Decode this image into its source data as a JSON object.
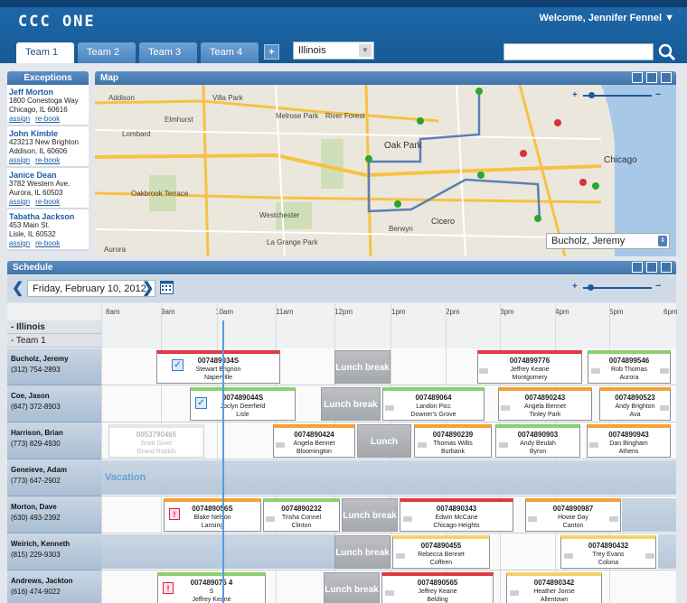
{
  "app": {
    "logo": "CCC ONE",
    "welcome": "Welcome, Jennifer Fennel"
  },
  "tabs": [
    "Team 1",
    "Team 2",
    "Team 3",
    "Team 4"
  ],
  "add_tab": "+",
  "state_select": "Illinois",
  "exceptions": {
    "title": "Exceptions",
    "assign": "assign",
    "rebook": "re-book",
    "items": [
      {
        "name": "Jeff Morton",
        "addr1": "1800 Conestoga Way",
        "addr2": "Chicago, IL 60616"
      },
      {
        "name": "John Kimble",
        "addr1": "423213 New Brighton",
        "addr2": "Addison, IL 60606"
      },
      {
        "name": "Janice Dean",
        "addr1": "3782 Western Ave.",
        "addr2": "Aurora, IL 60503"
      },
      {
        "name": "Tabatha Jackson",
        "addr1": "453 Main St.",
        "addr2": "Lisle, IL 60532"
      }
    ]
  },
  "map": {
    "title": "Map",
    "driver_select": "Bucholz, Jeremy",
    "places": [
      "Elmhurst",
      "Oak Park",
      "Chicago",
      "Aurora",
      "Cicero",
      "Berwyn",
      "Westchester",
      "La Grange Park",
      "Melrose Park",
      "River Forest",
      "Lombard",
      "Oakbrook Terrace",
      "Villa Park",
      "Addison"
    ]
  },
  "schedule": {
    "title": "Schedule",
    "date": "Friday, February 10, 2012",
    "hours": [
      "8am",
      "9am",
      "10am",
      "11am",
      "12pm",
      "1pm",
      "2pm",
      "3pm",
      "4pm",
      "5pm",
      "6pm"
    ],
    "group_state": "- Illinois",
    "group_team": "- Team 1",
    "lunch": "Lunch break",
    "vacation": "Vacation",
    "rows": [
      {
        "name": "Bucholz, Jeremy",
        "phone": "(312) 754-2893"
      },
      {
        "name": "Coe, Jason",
        "phone": "(847) 372-8903"
      },
      {
        "name": "Harrison, Brian",
        "phone": "(773) 829-4930"
      },
      {
        "name": "Geneieve, Adam",
        "phone": "(773) 647-2902"
      },
      {
        "name": "Morton, Dave",
        "phone": "(630) 493-2392"
      },
      {
        "name": "Weirich, Kenneth",
        "phone": "(815) 229-9303"
      },
      {
        "name": "Andrews, Jackton",
        "phone": "(616) 474-9022"
      }
    ],
    "appointments": [
      {
        "id": "007489034S",
        "name": "Stewart Brignon",
        "city": "Naperville"
      },
      {
        "id": "0074899776",
        "name": "Jeffrey Keane",
        "city": "Montgomery"
      },
      {
        "id": "0074899546",
        "name": "Rob Thomas",
        "city": "Aurora"
      },
      {
        "id": "007489044S",
        "name": "Joclyn Deerfield",
        "city": "Lisle"
      },
      {
        "id": "007489064",
        "name": "Landon Picc",
        "city": "Downer's Grove"
      },
      {
        "id": "0074890243",
        "name": "Angela Bennet",
        "city": "Tinley Park"
      },
      {
        "id": "0074890523",
        "name": "Andy Brighton",
        "city": "Ava"
      },
      {
        "id": "0053790465",
        "name": "Scott Giner",
        "city": "Grand Rapids"
      },
      {
        "id": "0074890424",
        "name": "Angela Bennet",
        "city": "Bloomington"
      },
      {
        "id": "0074890239",
        "name": "Thomas Willis",
        "city": "Burbank"
      },
      {
        "id": "0074890903",
        "name": "Andy Beulah",
        "city": "Byron"
      },
      {
        "id": "0074890943",
        "name": "Dan Bingham",
        "city": "Athens"
      },
      {
        "id": "007489056S",
        "name": "Blake Nelson",
        "city": "Lansing"
      },
      {
        "id": "0074890232",
        "name": "Trisha Connel",
        "city": "Clinton"
      },
      {
        "id": "0074890343",
        "name": "Edwin McCane",
        "city": "Chicago Heights"
      },
      {
        "id": "0074890987",
        "name": "Howie Day",
        "city": "Canton"
      },
      {
        "id": "0074890455",
        "name": "Rebecca Bennet",
        "city": "Coffeen"
      },
      {
        "id": "0074890432",
        "name": "Trey Evans",
        "city": "Colona"
      },
      {
        "id": "007489075 4",
        "name": "S",
        "city": "Jeffrey Keane"
      },
      {
        "id": "0074890565",
        "name": "Jeffrey Keane",
        "city": "Belding"
      },
      {
        "id": "0074890342",
        "name": "Heather Jonse",
        "city": "Allentown"
      }
    ]
  },
  "colors": {
    "header": "#1d67a8",
    "red": "#e0393e",
    "orange": "#f5a233",
    "green": "#8bd16f",
    "yellow": "#f3d26a",
    "blue": "#3a7ac4"
  }
}
